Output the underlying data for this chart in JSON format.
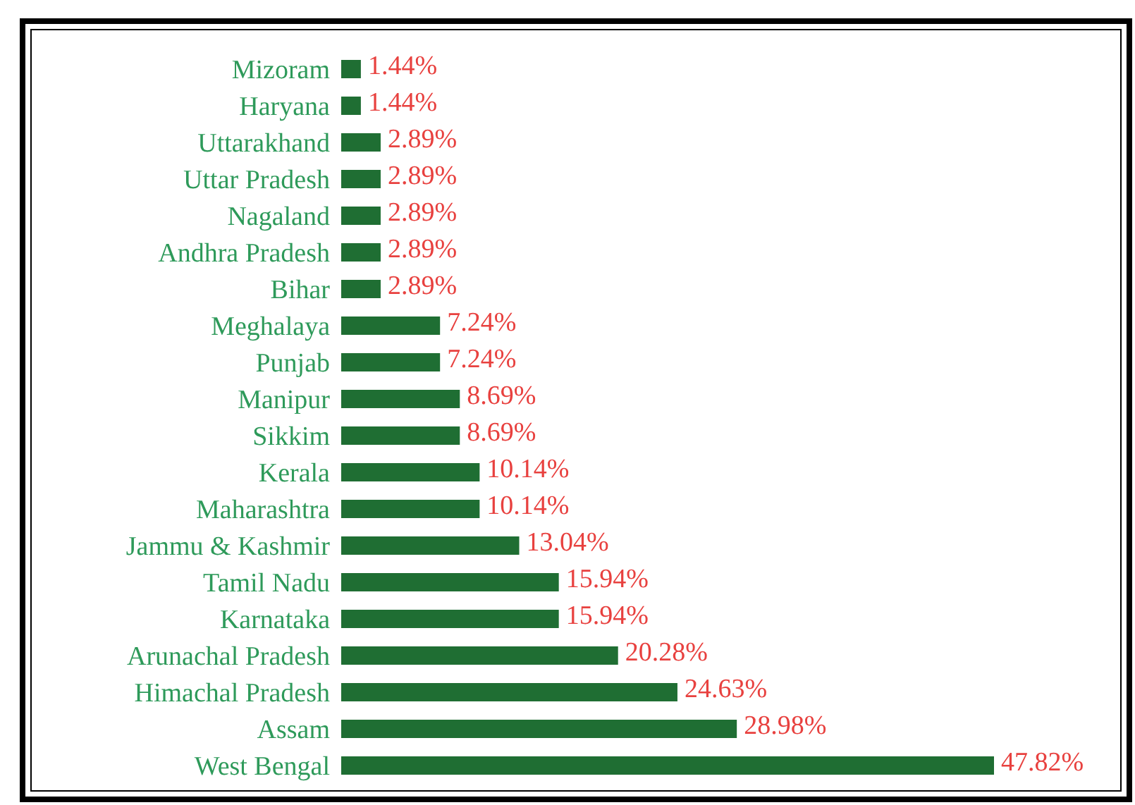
{
  "chart_data": {
    "type": "bar",
    "orientation": "horizontal",
    "categories": [
      "Mizoram",
      "Haryana",
      "Uttarakhand",
      "Uttar Pradesh",
      "Nagaland",
      "Andhra Pradesh",
      "Bihar",
      "Meghalaya",
      "Punjab",
      "Manipur",
      "Sikkim",
      "Kerala",
      "Maharashtra",
      "Jammu & Kashmir",
      "Tamil Nadu",
      "Karnataka",
      "Arunachal Pradesh",
      "Himachal Pradesh",
      "Assam",
      "West Bengal"
    ],
    "values": [
      1.44,
      1.44,
      2.89,
      2.89,
      2.89,
      2.89,
      2.89,
      7.24,
      7.24,
      8.69,
      8.69,
      10.14,
      10.14,
      13.04,
      15.94,
      15.94,
      20.28,
      24.63,
      28.98,
      47.82
    ],
    "value_labels": [
      "1.44%",
      "1.44%",
      "2.89%",
      "2.89%",
      "2.89%",
      "2.89%",
      "2.89%",
      "7.24%",
      "7.24%",
      "8.69%",
      "8.69%",
      "10.14%",
      "10.14%",
      "13.04%",
      "15.94%",
      "15.94%",
      "20.28%",
      "24.63%",
      "28.98%",
      "47.82%"
    ],
    "color": "#1f6e33"
  }
}
